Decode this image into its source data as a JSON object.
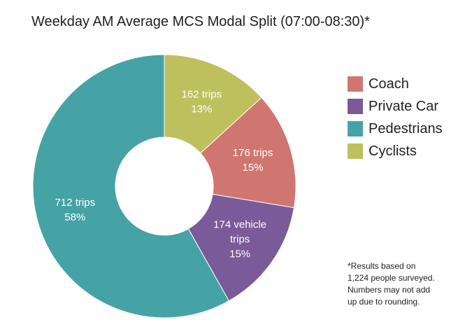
{
  "chart_data": {
    "type": "pie",
    "title": "Weekday AM Average MCS Modal Split (07:00-08:30)*",
    "series": [
      {
        "name": "Cyclists",
        "trips": 162,
        "percent": 13,
        "label_lines": [
          "162 trips",
          "13%"
        ],
        "color": "#bec05e"
      },
      {
        "name": "Coach",
        "trips": 176,
        "percent": 15,
        "label_lines": [
          "176 trips",
          "15%"
        ],
        "color": "#d07670"
      },
      {
        "name": "Private Car",
        "trips": 174,
        "percent": 15,
        "label_lines": [
          "174 vehicle",
          "trips",
          "15%"
        ],
        "color": "#7a5a98"
      },
      {
        "name": "Pedestrians",
        "trips": 712,
        "percent": 58,
        "label_lines": [
          "712 trips",
          "58%"
        ],
        "color": "#45a3a6"
      }
    ],
    "legend": {
      "position": "right",
      "entries": [
        "Coach",
        "Private Car",
        "Pedestrians",
        "Cyclists"
      ]
    }
  },
  "footnote": {
    "lines": [
      "*Results based on",
      "1,224 people surveyed.",
      "Numbers may not add",
      "up due to rounding."
    ]
  }
}
